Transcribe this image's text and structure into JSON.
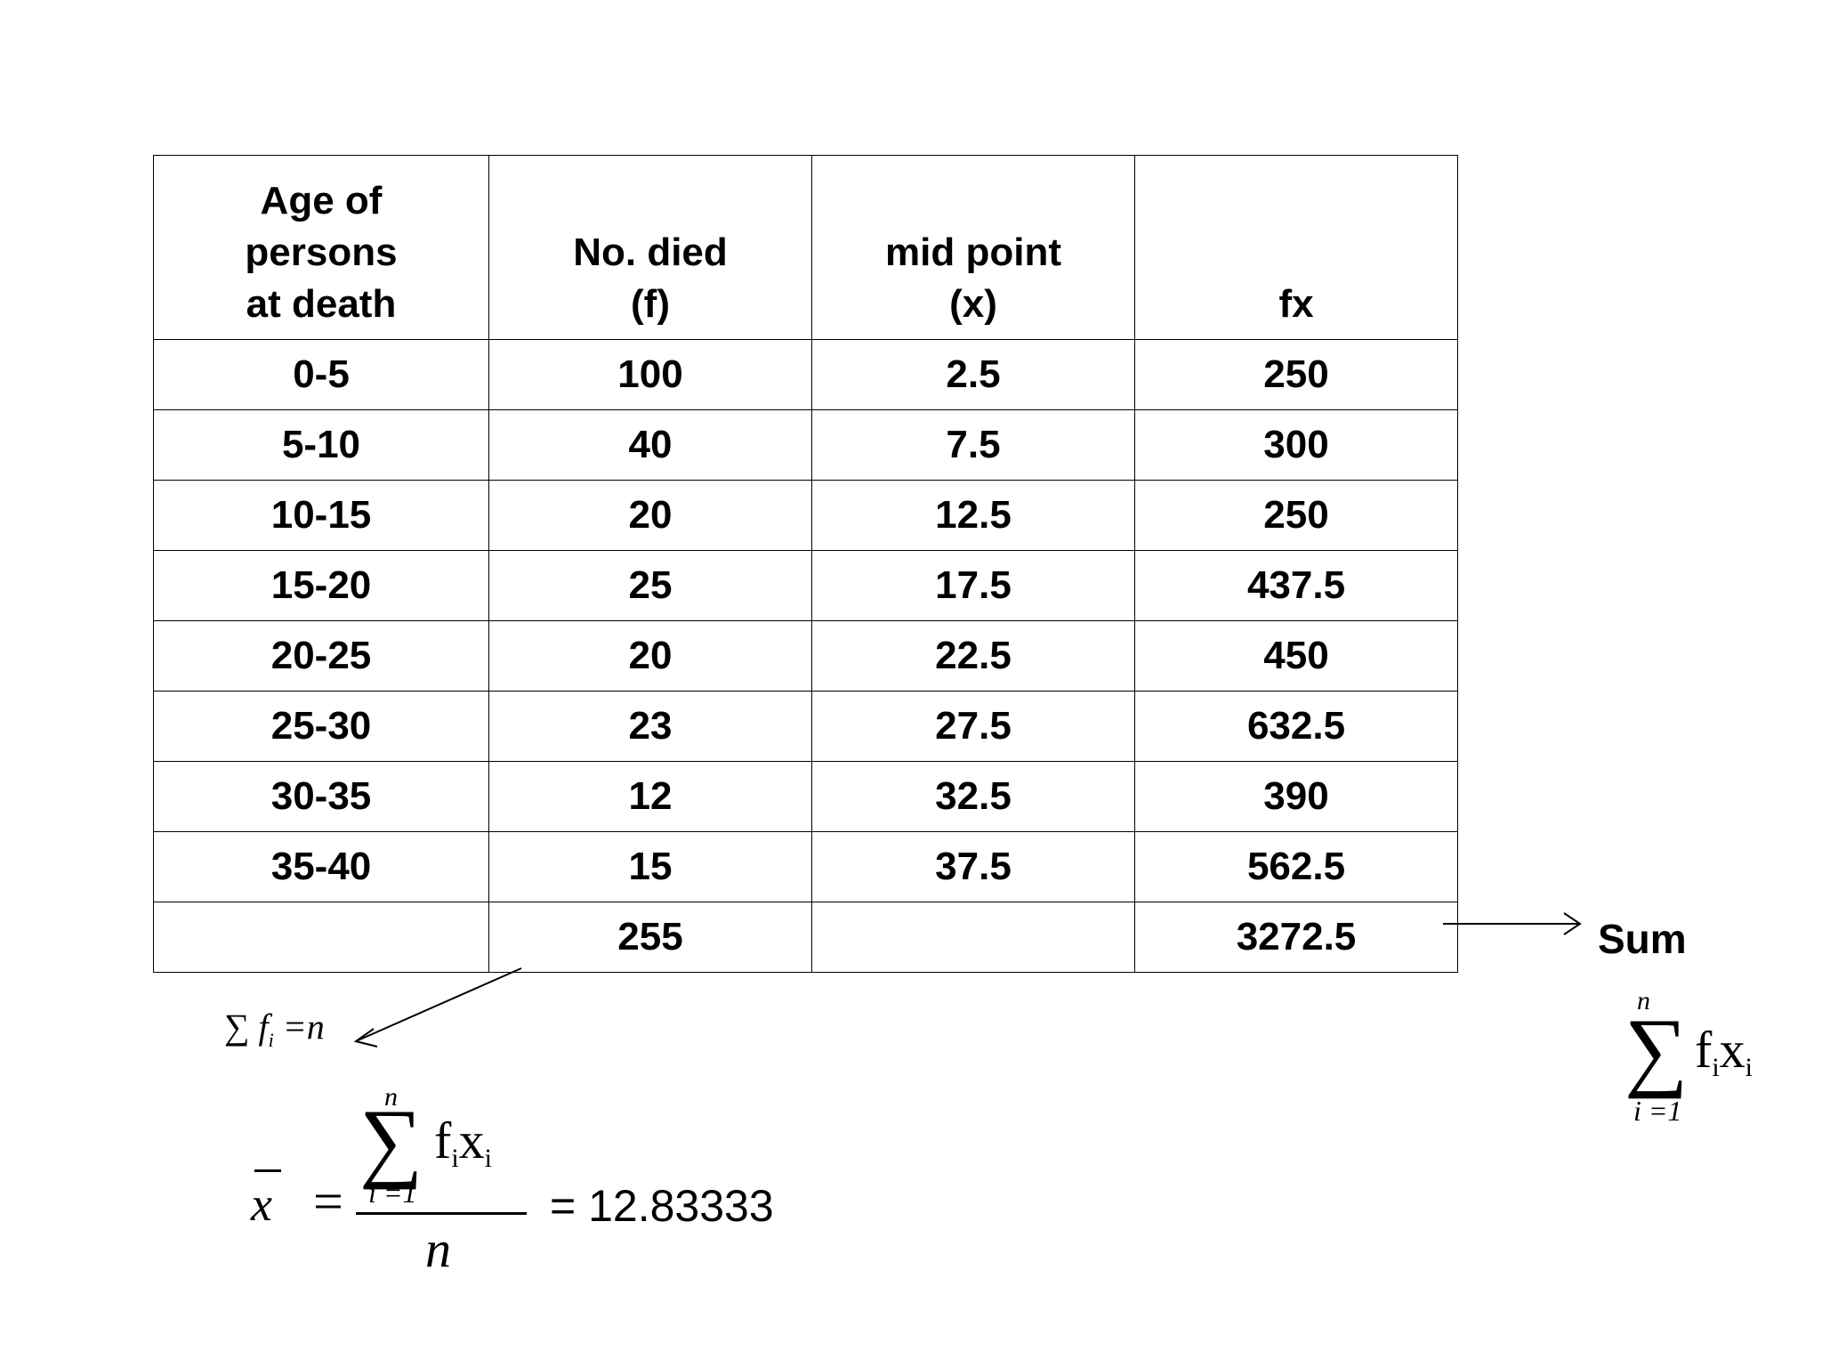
{
  "table": {
    "headers": [
      [
        "Age of",
        "persons",
        "at death"
      ],
      [
        "No. died",
        "(f)"
      ],
      [
        "mid point",
        "(x)"
      ],
      [
        "fx"
      ]
    ],
    "rows": [
      [
        "0-5",
        "100",
        "2.5",
        "250"
      ],
      [
        "5-10",
        "40",
        "7.5",
        "300"
      ],
      [
        "10-15",
        "20",
        "12.5",
        "250"
      ],
      [
        "15-20",
        "25",
        "17.5",
        "437.5"
      ],
      [
        "20-25",
        "20",
        "22.5",
        "450"
      ],
      [
        "25-30",
        "23",
        "27.5",
        "632.5"
      ],
      [
        "30-35",
        "12",
        "32.5",
        "390"
      ],
      [
        "35-40",
        "15",
        "37.5",
        "562.5"
      ],
      [
        "",
        "255",
        "",
        "3272.5"
      ]
    ]
  },
  "annotations": {
    "sum_label": "Sum",
    "sum_fi_prefix": "∑",
    "sum_fi_var": "f",
    "sum_fi_sub": "i",
    "sum_fi_suffix": " =n",
    "sigma_upper": "n",
    "sigma_glyph": "∑",
    "sigma_lower": "i =1",
    "fx_f": "f",
    "fx_fsub": "i",
    "fx_x": "x",
    "fx_xsub": "i",
    "mean_symbol": "x",
    "mean_equals": "=",
    "denominator": "n",
    "result": "= 12.83333"
  }
}
